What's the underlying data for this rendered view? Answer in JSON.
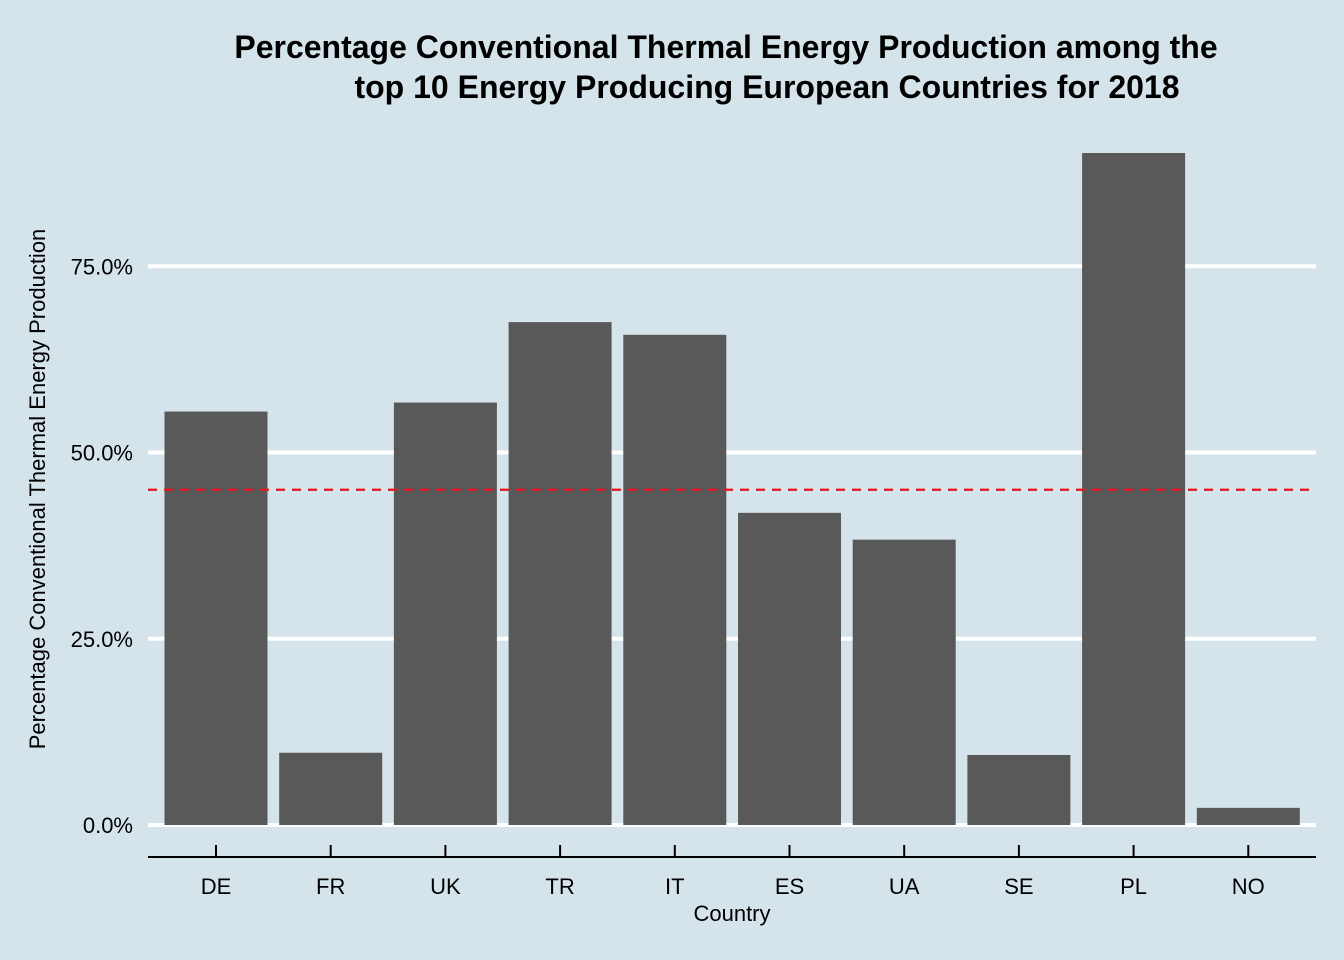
{
  "chart_data": {
    "type": "bar",
    "title_lines": [
      "Percentage Conventional Thermal Energy Production among the",
      "top 10 Energy Producing European Countries for 2018"
    ],
    "xlabel": "Country",
    "ylabel": "Percentage Conventional Thermal Energy Production",
    "categories": [
      "DE",
      "FR",
      "UK",
      "TR",
      "IT",
      "ES",
      "UA",
      "SE",
      "PL",
      "NO"
    ],
    "values": [
      55.5,
      9.7,
      56.7,
      67.5,
      65.8,
      41.9,
      38.3,
      9.4,
      90.2,
      2.3
    ],
    "y_ticks": [
      0,
      25,
      50,
      75
    ],
    "y_tick_labels": [
      "0.0%",
      "25.0%",
      "50.0%",
      "75.0%"
    ],
    "ylim": [
      0,
      100
    ],
    "reference_line": {
      "value": 45,
      "style": "dashed",
      "color": "#e8141c"
    },
    "colors": {
      "bar": "#595959",
      "background": "#d5e4eb",
      "grid": "#ffffff",
      "axis": "#000000"
    },
    "grid": true,
    "legend": false
  }
}
